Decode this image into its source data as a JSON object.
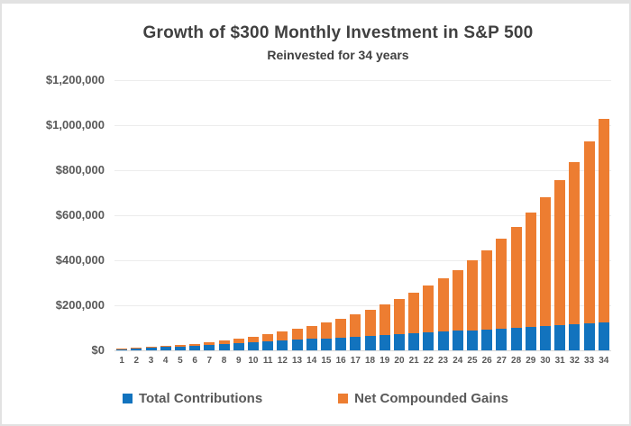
{
  "chart_data": {
    "type": "bar",
    "stacked": true,
    "title": "Growth of $300 Monthly Investment in S&P 500",
    "subtitle": "Reinvested for 34 years",
    "categories": [
      1,
      2,
      3,
      4,
      5,
      6,
      7,
      8,
      9,
      10,
      11,
      12,
      13,
      14,
      15,
      16,
      17,
      18,
      19,
      20,
      21,
      22,
      23,
      24,
      25,
      26,
      27,
      28,
      29,
      30,
      31,
      32,
      33,
      34
    ],
    "series": [
      {
        "name": "Total Contributions",
        "color": "#1273be",
        "values": [
          3600,
          7200,
          10800,
          14400,
          18000,
          21600,
          25200,
          28800,
          32400,
          36000,
          39600,
          43200,
          46800,
          50400,
          54000,
          57600,
          61200,
          64800,
          68400,
          72000,
          75600,
          79200,
          82800,
          86400,
          90000,
          93600,
          97200,
          100800,
          104400,
          108000,
          111600,
          115200,
          118800,
          122400
        ]
      },
      {
        "name": "Net Compounded Gains",
        "color": "#ed7d31",
        "values": [
          200,
          700,
          1700,
          3200,
          5200,
          7900,
          11100,
          15100,
          19900,
          25500,
          32100,
          39800,
          48700,
          58900,
          70500,
          83700,
          98700,
          115600,
          134700,
          156100,
          180200,
          207200,
          237400,
          271100,
          308700,
          350600,
          397300,
          449300,
          507100,
          571300,
          642600,
          721700,
          809500,
          906900
        ]
      }
    ],
    "y_ticks": [
      {
        "value": 0,
        "label": "$0"
      },
      {
        "value": 200000,
        "label": "$200,000"
      },
      {
        "value": 400000,
        "label": "$400,000"
      },
      {
        "value": 600000,
        "label": "$600,000"
      },
      {
        "value": 800000,
        "label": "$800,000"
      },
      {
        "value": 1000000,
        "label": "$1,000,000"
      },
      {
        "value": 1200000,
        "label": "$1,200,000"
      }
    ],
    "ylim": [
      0,
      1200000
    ],
    "grid": true,
    "legend_position": "bottom",
    "colors": {
      "title_text": "#404040",
      "axis_text": "#595959",
      "gridline": "#ececec",
      "axis_line": "#d9d9d9",
      "background": "#ffffff",
      "frame_border": "#e2e2e2"
    }
  }
}
